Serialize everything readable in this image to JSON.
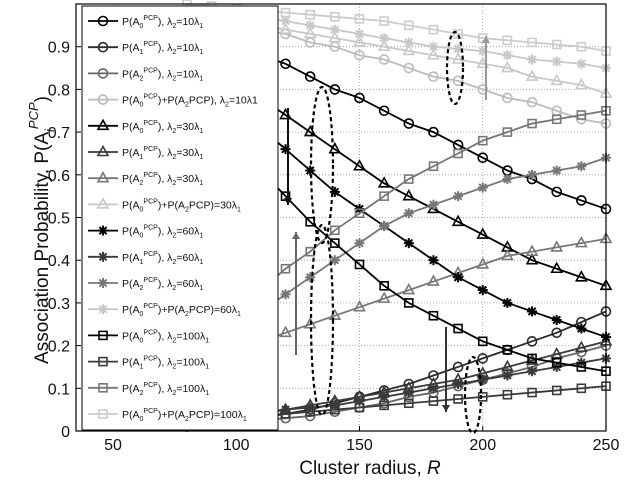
{
  "chart_data": {
    "type": "line",
    "xlabel": "Cluster radius, R",
    "ylabel": "Association Probability, P(A_i^PCP)",
    "xlim": [
      35,
      250
    ],
    "ylim": [
      0,
      1
    ],
    "xticks": [
      50,
      100,
      150,
      200,
      250
    ],
    "yticks": [
      0,
      0.1,
      0.2,
      0.3,
      0.4,
      0.5,
      0.6,
      0.7,
      0.8,
      0.9
    ],
    "grid": true,
    "legend_position": "left, overlapping plot",
    "series": [
      {
        "name": "P(A0^PCP), λ2=10λ1",
        "color": "#000000",
        "marker": "circle",
        "x": [
          80,
          90,
          100,
          110,
          120,
          130,
          140,
          150,
          160,
          170,
          180,
          190,
          200,
          210,
          220,
          230,
          240,
          250
        ],
        "y": [
          0.96,
          0.94,
          0.91,
          0.88,
          0.86,
          0.83,
          0.8,
          0.78,
          0.75,
          0.72,
          0.7,
          0.67,
          0.64,
          0.61,
          0.59,
          0.56,
          0.54,
          0.52
        ]
      },
      {
        "name": "P(A1^PCP), λ2=10λ1",
        "color": "#2a2a2a",
        "marker": "circle",
        "x": [
          80,
          90,
          100,
          110,
          120,
          130,
          140,
          150,
          160,
          170,
          180,
          190,
          200,
          210,
          220,
          230,
          240,
          250
        ],
        "y": [
          0.015,
          0.02,
          0.025,
          0.03,
          0.04,
          0.05,
          0.065,
          0.08,
          0.095,
          0.11,
          0.13,
          0.15,
          0.17,
          0.19,
          0.21,
          0.23,
          0.255,
          0.28
        ]
      },
      {
        "name": "P(A2^PCP), λ2=10λ1",
        "color": "#666666",
        "marker": "circle",
        "x": [
          80,
          90,
          100,
          110,
          120,
          130,
          140,
          150,
          160,
          170,
          180,
          190,
          200,
          210,
          220,
          230,
          240,
          250
        ],
        "y": [
          0.01,
          0.015,
          0.02,
          0.025,
          0.03,
          0.035,
          0.045,
          0.055,
          0.065,
          0.08,
          0.09,
          0.105,
          0.12,
          0.135,
          0.15,
          0.17,
          0.185,
          0.2
        ]
      },
      {
        "name": "P(A0^PCP)+P(A2^PCP), λ2=10λ1",
        "color": "#bbbbbb",
        "marker": "circle",
        "x": [
          80,
          90,
          100,
          110,
          120,
          130,
          140,
          150,
          160,
          170,
          180,
          190,
          200,
          210,
          220,
          230,
          240,
          250
        ],
        "y": [
          0.97,
          0.96,
          0.95,
          0.94,
          0.93,
          0.91,
          0.9,
          0.88,
          0.87,
          0.85,
          0.83,
          0.82,
          0.8,
          0.78,
          0.77,
          0.75,
          0.73,
          0.72
        ]
      },
      {
        "name": "P(A0^PCP), λ2=30λ1",
        "color": "#000000",
        "marker": "triangle",
        "x": [
          80,
          90,
          100,
          110,
          120,
          130,
          140,
          150,
          160,
          170,
          180,
          190,
          200,
          210,
          220,
          230,
          240,
          250
        ],
        "y": [
          0.92,
          0.87,
          0.82,
          0.78,
          0.74,
          0.7,
          0.66,
          0.62,
          0.58,
          0.55,
          0.52,
          0.49,
          0.46,
          0.43,
          0.4,
          0.38,
          0.36,
          0.34
        ]
      },
      {
        "name": "P(A1^PCP), λ2=30λ1",
        "color": "#3a3a3a",
        "marker": "triangle",
        "x": [
          80,
          90,
          100,
          110,
          120,
          130,
          140,
          150,
          160,
          170,
          180,
          190,
          200,
          210,
          220,
          230,
          240,
          250
        ],
        "y": [
          0.02,
          0.03,
          0.035,
          0.04,
          0.05,
          0.06,
          0.07,
          0.08,
          0.09,
          0.1,
          0.11,
          0.12,
          0.135,
          0.15,
          0.165,
          0.18,
          0.195,
          0.21
        ]
      },
      {
        "name": "P(A2^PCP), λ2=30λ1",
        "color": "#777777",
        "marker": "triangle",
        "x": [
          80,
          90,
          100,
          110,
          120,
          130,
          140,
          150,
          160,
          170,
          180,
          190,
          200,
          210,
          220,
          230,
          240,
          250
        ],
        "y": [
          0.15,
          0.17,
          0.19,
          0.21,
          0.23,
          0.25,
          0.27,
          0.29,
          0.31,
          0.33,
          0.35,
          0.37,
          0.39,
          0.41,
          0.42,
          0.43,
          0.44,
          0.45
        ]
      },
      {
        "name": "P(A0^PCP)+P(A2^PCP)=30λ1",
        "color": "#c8c8c8",
        "marker": "triangle",
        "x": [
          80,
          90,
          100,
          110,
          120,
          130,
          140,
          150,
          160,
          170,
          180,
          190,
          200,
          210,
          220,
          230,
          240,
          250
        ],
        "y": [
          0.98,
          0.97,
          0.96,
          0.95,
          0.94,
          0.93,
          0.92,
          0.91,
          0.9,
          0.89,
          0.88,
          0.87,
          0.86,
          0.85,
          0.83,
          0.82,
          0.81,
          0.79
        ]
      },
      {
        "name": "P(A0^PCP), λ2=60λ1",
        "color": "#000000",
        "marker": "star",
        "x": [
          80,
          90,
          100,
          110,
          120,
          130,
          140,
          150,
          160,
          170,
          180,
          190,
          200,
          210,
          220,
          230,
          240,
          250
        ],
        "y": [
          0.88,
          0.82,
          0.76,
          0.71,
          0.66,
          0.61,
          0.56,
          0.52,
          0.48,
          0.44,
          0.4,
          0.36,
          0.33,
          0.3,
          0.28,
          0.26,
          0.24,
          0.22
        ]
      },
      {
        "name": "P(A1^PCP), λ2=60λ1",
        "color": "#3a3a3a",
        "marker": "star",
        "x": [
          80,
          90,
          100,
          110,
          120,
          130,
          140,
          150,
          160,
          170,
          180,
          190,
          200,
          210,
          220,
          230,
          240,
          250
        ],
        "y": [
          0.03,
          0.035,
          0.04,
          0.045,
          0.05,
          0.055,
          0.06,
          0.07,
          0.08,
          0.09,
          0.1,
          0.11,
          0.12,
          0.13,
          0.14,
          0.15,
          0.16,
          0.17
        ]
      },
      {
        "name": "P(A2^PCP), λ2=60λ1",
        "color": "#777777",
        "marker": "star",
        "x": [
          80,
          90,
          100,
          110,
          120,
          130,
          140,
          150,
          160,
          170,
          180,
          190,
          200,
          210,
          220,
          230,
          240,
          250
        ],
        "y": [
          0.18,
          0.21,
          0.25,
          0.28,
          0.32,
          0.36,
          0.4,
          0.44,
          0.48,
          0.51,
          0.53,
          0.55,
          0.57,
          0.59,
          0.6,
          0.61,
          0.62,
          0.64
        ]
      },
      {
        "name": "P(A0^PCP)+P(A2^PCP)=60λ1",
        "color": "#c8c8c8",
        "marker": "star",
        "x": [
          80,
          90,
          100,
          110,
          120,
          130,
          140,
          150,
          160,
          170,
          180,
          190,
          200,
          210,
          220,
          230,
          240,
          250
        ],
        "y": [
          0.99,
          0.985,
          0.98,
          0.97,
          0.96,
          0.95,
          0.94,
          0.93,
          0.92,
          0.91,
          0.9,
          0.895,
          0.89,
          0.88,
          0.87,
          0.865,
          0.86,
          0.85
        ]
      },
      {
        "name": "P(A0^PCP), λ2=100λ1",
        "color": "#000000",
        "marker": "square",
        "x": [
          80,
          90,
          100,
          110,
          120,
          130,
          140,
          150,
          160,
          170,
          180,
          190,
          200,
          210,
          220,
          230,
          240,
          250
        ],
        "y": [
          0.82,
          0.75,
          0.68,
          0.61,
          0.55,
          0.49,
          0.44,
          0.39,
          0.34,
          0.3,
          0.27,
          0.24,
          0.21,
          0.19,
          0.17,
          0.16,
          0.15,
          0.14
        ]
      },
      {
        "name": "P(A1^PCP), λ2=100λ1",
        "color": "#3a3a3a",
        "marker": "square",
        "x": [
          80,
          90,
          100,
          110,
          120,
          130,
          140,
          150,
          160,
          170,
          180,
          190,
          200,
          210,
          220,
          230,
          240,
          250
        ],
        "y": [
          0.02,
          0.025,
          0.03,
          0.035,
          0.04,
          0.045,
          0.05,
          0.055,
          0.06,
          0.065,
          0.07,
          0.075,
          0.08,
          0.085,
          0.09,
          0.095,
          0.1,
          0.105
        ]
      },
      {
        "name": "P(A2^PCP), λ2=100λ1",
        "color": "#777777",
        "marker": "square",
        "x": [
          80,
          90,
          100,
          110,
          120,
          130,
          140,
          150,
          160,
          170,
          180,
          190,
          200,
          210,
          220,
          230,
          240,
          250
        ],
        "y": [
          0.18,
          0.23,
          0.28,
          0.33,
          0.38,
          0.42,
          0.47,
          0.51,
          0.55,
          0.59,
          0.62,
          0.65,
          0.68,
          0.7,
          0.72,
          0.73,
          0.74,
          0.75
        ]
      },
      {
        "name": "P(A0^PCP)+P(A2^PCP)=100λ1",
        "color": "#cccccc",
        "marker": "square",
        "x": [
          80,
          90,
          100,
          110,
          120,
          130,
          140,
          150,
          160,
          170,
          180,
          190,
          200,
          210,
          220,
          230,
          240,
          250
        ],
        "y": [
          1.0,
          0.995,
          0.99,
          0.985,
          0.98,
          0.975,
          0.97,
          0.965,
          0.96,
          0.95,
          0.94,
          0.93,
          0.92,
          0.915,
          0.91,
          0.905,
          0.9,
          0.89
        ]
      }
    ],
    "legend_labels": [
      {
        "base": "P(A",
        "sub": "0",
        "sup": "PCP",
        "tail": "), λ",
        "lsub": "2",
        "eq": "=10λ",
        "esub": "1",
        "extra": ""
      },
      {
        "base": "P(A",
        "sub": "1",
        "sup": "PCP",
        "tail": "), λ",
        "lsub": "2",
        "eq": "=10λ",
        "esub": "1",
        "extra": ""
      },
      {
        "base": "P(A",
        "sub": "2",
        "sup": "PCP",
        "tail": "), λ",
        "lsub": "2",
        "eq": "=10λ",
        "esub": "1",
        "extra": ""
      },
      {
        "base": "P(A",
        "sub": "0",
        "sup": "PCP",
        "tail": ")+P(A",
        "lsub": "2",
        "eq": "PCP), λ",
        "esub": "2",
        "extra": "=10λ1"
      },
      {
        "base": "P(A",
        "sub": "0",
        "sup": "PCP",
        "tail": "), λ",
        "lsub": "2",
        "eq": "=30λ",
        "esub": "1",
        "extra": ""
      },
      {
        "base": "P(A",
        "sub": "1",
        "sup": "PCP",
        "tail": "), λ",
        "lsub": "2",
        "eq": "=30λ",
        "esub": "1",
        "extra": ""
      },
      {
        "base": "P(A",
        "sub": "2",
        "sup": "PCP",
        "tail": "), λ",
        "lsub": "2",
        "eq": "=30λ",
        "esub": "1",
        "extra": ""
      },
      {
        "base": "P(A",
        "sub": "0",
        "sup": "PCP",
        "tail": ")+P(A",
        "lsub": "2",
        "eq": "PCP)=30λ",
        "esub": "1",
        "extra": ""
      },
      {
        "base": "P(A",
        "sub": "0",
        "sup": "PCP",
        "tail": "), λ",
        "lsub": "2",
        "eq": "=60λ",
        "esub": "1",
        "extra": ""
      },
      {
        "base": "P(A",
        "sub": "1",
        "sup": "PCP",
        "tail": "), λ",
        "lsub": "2",
        "eq": "=60λ",
        "esub": "1",
        "extra": ""
      },
      {
        "base": "P(A",
        "sub": "2",
        "sup": "PCP",
        "tail": "), λ",
        "lsub": "2",
        "eq": "=60λ",
        "esub": "1",
        "extra": ""
      },
      {
        "base": "P(A",
        "sub": "0",
        "sup": "PCP",
        "tail": ")+P(A",
        "lsub": "2",
        "eq": "PCP)=60λ",
        "esub": "1",
        "extra": ""
      },
      {
        "base": "P(A",
        "sub": "0",
        "sup": "PCP",
        "tail": "), λ",
        "lsub": "2",
        "eq": "=100λ",
        "esub": "1",
        "extra": ""
      },
      {
        "base": "P(A",
        "sub": "1",
        "sup": "PCP",
        "tail": "), λ",
        "lsub": "2",
        "eq": "=100λ",
        "esub": "1",
        "extra": ""
      },
      {
        "base": "P(A",
        "sub": "2",
        "sup": "PCP",
        "tail": "), λ",
        "lsub": "2",
        "eq": "=100λ",
        "esub": "1",
        "extra": ""
      },
      {
        "base": "P(A",
        "sub": "0",
        "sup": "PCP",
        "tail": ")+P(A",
        "lsub": "2",
        "eq": "PCP)=100λ",
        "esub": "1",
        "extra": ""
      }
    ]
  }
}
